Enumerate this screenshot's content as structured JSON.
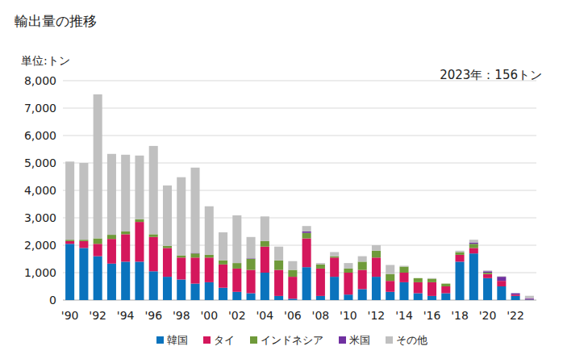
{
  "chart_data": {
    "type": "bar",
    "stacked": true,
    "grid": true,
    "legend": "bottom",
    "title": "輸出量の推移",
    "ylabel": "単位:トン",
    "annotations": [
      "2023年：156トン"
    ],
    "categories": [
      "'90",
      null,
      "'92",
      null,
      "'94",
      null,
      "'96",
      null,
      "'98",
      null,
      "'00",
      null,
      "'02",
      null,
      "'04",
      null,
      "'06",
      null,
      "'08",
      null,
      "'10",
      null,
      "'12",
      null,
      "'14",
      null,
      "'16",
      null,
      "'18",
      null,
      "'20",
      null,
      "'22",
      null
    ],
    "ylim": [
      0,
      8000
    ],
    "yticks": [
      0,
      {
        "value": 1000,
        "label": "1,000"
      },
      {
        "value": 2000,
        "label": "2,000"
      },
      {
        "value": 3000,
        "label": "3,000"
      },
      {
        "value": 4000,
        "label": "4,000"
      },
      {
        "value": 5000,
        "label": "5,000"
      },
      {
        "value": 6000,
        "label": "6,000"
      },
      {
        "value": 7000,
        "label": "7,000"
      },
      {
        "value": 8000,
        "label": "8,000"
      }
    ],
    "series": [
      {
        "name": "韓国",
        "color": "#0a73bd",
        "values": [
          2050,
          1900,
          1600,
          1330,
          1400,
          1400,
          1050,
          850,
          750,
          600,
          650,
          450,
          300,
          250,
          1000,
          150,
          50,
          1200,
          150,
          850,
          200,
          400,
          850,
          300,
          650,
          250,
          150,
          250,
          1400,
          1700,
          800,
          500,
          150,
          20
        ]
      },
      {
        "name": "タイ",
        "color": "#d4175c",
        "values": [
          100,
          250,
          450,
          900,
          1000,
          1450,
          1250,
          1050,
          800,
          950,
          900,
          850,
          850,
          850,
          950,
          950,
          800,
          1050,
          1000,
          700,
          800,
          700,
          700,
          400,
          350,
          400,
          500,
          250,
          250,
          200,
          150,
          200,
          50,
          20
        ]
      },
      {
        "name": "インドネシア",
        "color": "#6f9a3a",
        "values": [
          50,
          50,
          200,
          150,
          100,
          100,
          100,
          80,
          80,
          150,
          100,
          150,
          200,
          400,
          200,
          350,
          250,
          200,
          150,
          50,
          150,
          300,
          250,
          250,
          220,
          150,
          130,
          100,
          100,
          150,
          50,
          0,
          0,
          0
        ]
      },
      {
        "name": "米国",
        "color": "#7030a0",
        "values": [
          0,
          0,
          0,
          0,
          0,
          0,
          0,
          0,
          0,
          20,
          0,
          0,
          0,
          20,
          0,
          0,
          0,
          50,
          0,
          0,
          0,
          0,
          0,
          0,
          0,
          0,
          0,
          0,
          0,
          50,
          50,
          150,
          50,
          30
        ]
      },
      {
        "name": "その他",
        "color": "#c0c0c0",
        "values": [
          2850,
          2800,
          5250,
          2950,
          2800,
          2320,
          3220,
          2200,
          2850,
          3110,
          1770,
          1020,
          1740,
          780,
          900,
          500,
          320,
          200,
          50,
          150,
          200,
          200,
          200,
          330,
          30,
          0,
          20,
          0,
          50,
          100,
          30,
          20,
          0,
          86
        ]
      }
    ]
  }
}
